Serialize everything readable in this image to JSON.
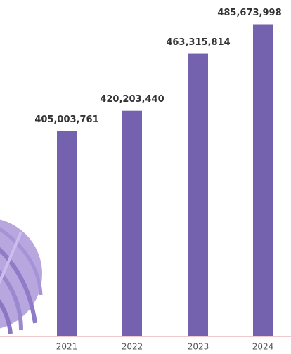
{
  "chart_data": {
    "type": "bar",
    "categories": [
      "2021",
      "2022",
      "2023",
      "2024"
    ],
    "values": [
      405003761,
      420203440,
      463315814,
      485673998
    ],
    "value_labels": [
      "405,003,761",
      "420,203,440",
      "463,315,814",
      "485,673,998"
    ],
    "color": "#7562ae",
    "ylim": [
      250000000,
      504000000
    ]
  }
}
